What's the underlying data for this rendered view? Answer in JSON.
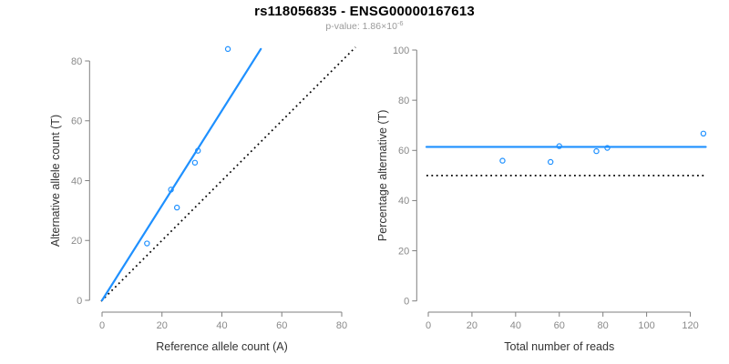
{
  "header": {
    "title": "rs118056835 - ENSG00000167613",
    "subtitle": {
      "label": "p-value:",
      "prefix": "p-value: 1.86×10",
      "exponent": "-6",
      "p_value_display": "1.86×10^-6"
    }
  },
  "colors": {
    "accent_blue": "#1E90FF",
    "reference_black": "#000000",
    "axis_gray": "#7f7f7f",
    "tick_label_gray": "#8a8a8a",
    "background": "#ffffff"
  },
  "chart_data": [
    {
      "type": "scatter",
      "name": "allele-counts-scatter",
      "xlabel": "Reference allele count (A)",
      "ylabel": "Alternative allele count (T)",
      "xlim": [
        0,
        84.6
      ],
      "ylim": [
        0,
        84.6
      ],
      "xticks": [
        0,
        20,
        40,
        60,
        80
      ],
      "yticks": [
        0,
        20,
        40,
        60,
        80
      ],
      "grid": false,
      "points": [
        [
          15,
          19
        ],
        [
          23,
          37
        ],
        [
          25,
          31
        ],
        [
          31,
          46
        ],
        [
          32,
          50
        ],
        [
          42,
          84
        ]
      ],
      "fit_line": {
        "name": "regression-line",
        "from": [
          0,
          0
        ],
        "to": [
          53,
          84
        ],
        "style": "solid",
        "color": "#1E90FF"
      },
      "identity_line": {
        "name": "identity-line",
        "slope": 1,
        "intercept": 0,
        "span": [
          -0.3,
          84.6
        ],
        "style": "dotted",
        "color": "#000000"
      }
    },
    {
      "type": "scatter",
      "name": "percentage-vs-reads-scatter",
      "xlabel": "Total number of reads",
      "ylabel": "Percentage alternative (T)",
      "xlim": [
        0,
        127
      ],
      "ylim": [
        0,
        100
      ],
      "xticks": [
        0,
        20,
        40,
        60,
        80,
        100,
        120
      ],
      "yticks": [
        0,
        20,
        40,
        60,
        80,
        100
      ],
      "grid": false,
      "points": [
        [
          34,
          55.9
        ],
        [
          56,
          55.4
        ],
        [
          60,
          61.7
        ],
        [
          77,
          59.7
        ],
        [
          82,
          61.0
        ],
        [
          126,
          66.7
        ]
      ],
      "hlines": [
        {
          "name": "mean-percentage-line",
          "y": 61.4,
          "style": "solid",
          "color": "#1E90FF"
        },
        {
          "name": "fifty-percent-line",
          "y": 50,
          "style": "dotted",
          "color": "#000000"
        }
      ]
    }
  ]
}
